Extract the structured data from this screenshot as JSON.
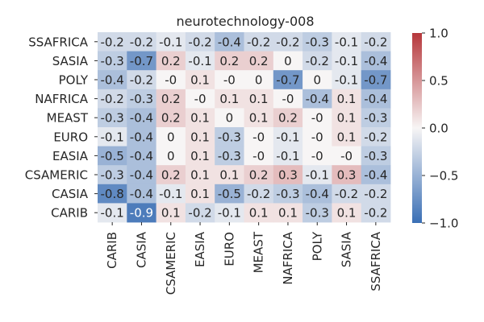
{
  "chart_data": {
    "type": "heatmap",
    "title": "neurotechnology-008",
    "rows": [
      "SSAFRICA",
      "SASIA",
      "POLY",
      "NAFRICA",
      "MEAST",
      "EURO",
      "EASIA",
      "CSAMERIC",
      "CASIA",
      "CARIB"
    ],
    "columns": [
      "CARIB",
      "CASIA",
      "CSAMERIC",
      "EASIA",
      "EURO",
      "MEAST",
      "NAFRICA",
      "POLY",
      "SASIA",
      "SSAFRICA"
    ],
    "values": [
      [
        -0.2,
        -0.2,
        -0.1,
        -0.2,
        -0.4,
        -0.2,
        -0.2,
        -0.3,
        -0.1,
        -0.2
      ],
      [
        -0.3,
        -0.7,
        0.2,
        -0.1,
        0.2,
        0.2,
        0.0,
        -0.2,
        -0.1,
        -0.4
      ],
      [
        -0.4,
        -0.2,
        -0.0,
        0.1,
        -0.0,
        0.0,
        -0.7,
        0.0,
        -0.1,
        -0.7
      ],
      [
        -0.2,
        -0.3,
        0.2,
        -0.0,
        0.1,
        0.1,
        -0.0,
        -0.4,
        0.1,
        -0.4
      ],
      [
        -0.3,
        -0.4,
        0.2,
        0.1,
        0.0,
        0.1,
        0.2,
        -0.0,
        0.1,
        -0.3
      ],
      [
        -0.1,
        -0.4,
        0.0,
        0.1,
        -0.3,
        -0.0,
        -0.1,
        -0.0,
        0.1,
        -0.2
      ],
      [
        -0.5,
        -0.4,
        0.0,
        0.1,
        -0.3,
        -0.0,
        -0.1,
        -0.0,
        -0.0,
        -0.3
      ],
      [
        -0.3,
        -0.4,
        0.2,
        0.1,
        0.1,
        0.2,
        0.3,
        -0.1,
        0.3,
        -0.4
      ],
      [
        -0.8,
        -0.4,
        -0.1,
        0.1,
        -0.5,
        -0.2,
        -0.3,
        -0.4,
        -0.2,
        -0.2
      ],
      [
        -0.1,
        -0.9,
        0.1,
        -0.2,
        -0.1,
        0.1,
        0.1,
        -0.3,
        0.1,
        -0.2
      ]
    ],
    "cell_labels": [
      [
        "-0.2",
        "-0.2",
        "-0.1",
        "-0.2",
        "-0.4",
        "-0.2",
        "-0.2",
        "-0.3",
        "-0.1",
        "-0.2"
      ],
      [
        "-0.3",
        "-0.7",
        "0.2",
        "-0.1",
        "0.2",
        "0.2",
        "0",
        "-0.2",
        "-0.1",
        "-0.4"
      ],
      [
        "-0.4",
        "-0.2",
        "-0",
        "0.1",
        "-0",
        "0",
        "-0.7",
        "0",
        "-0.1",
        "-0.7"
      ],
      [
        "-0.2",
        "-0.3",
        "0.2",
        "-0",
        "0.1",
        "0.1",
        "-0",
        "-0.4",
        "0.1",
        "-0.4"
      ],
      [
        "-0.3",
        "-0.4",
        "0.2",
        "0.1",
        "0",
        "0.1",
        "0.2",
        "-0",
        "0.1",
        "-0.3"
      ],
      [
        "-0.1",
        "-0.4",
        "0",
        "0.1",
        "-0.3",
        "-0",
        "-0.1",
        "-0",
        "0.1",
        "-0.2"
      ],
      [
        "-0.5",
        "-0.4",
        "0",
        "0.1",
        "-0.3",
        "-0",
        "-0.1",
        "-0",
        "-0",
        "-0.3"
      ],
      [
        "-0.3",
        "-0.4",
        "0.2",
        "0.1",
        "0.1",
        "0.2",
        "0.3",
        "-0.1",
        "0.3",
        "-0.4"
      ],
      [
        "-0.8",
        "-0.4",
        "-0.1",
        "0.1",
        "-0.5",
        "-0.2",
        "-0.3",
        "-0.4",
        "-0.2",
        "-0.2"
      ],
      [
        "-0.1",
        "-0.9",
        "0.1",
        "-0.2",
        "-0.1",
        "0.1",
        "0.1",
        "-0.3",
        "0.1",
        "-0.2"
      ]
    ],
    "color_range": [
      -1.0,
      1.0
    ],
    "colormap": {
      "negative": "#3a6fb5",
      "zero": "#f7f5f5",
      "positive": "#b6373b"
    },
    "colorbar": {
      "ticks": [
        1.0,
        0.5,
        0.0,
        -0.5,
        -1.0
      ],
      "tick_labels": [
        "1.0",
        "0.5",
        "0.0",
        "−0.5",
        "−1.0"
      ]
    },
    "grid": false
  }
}
